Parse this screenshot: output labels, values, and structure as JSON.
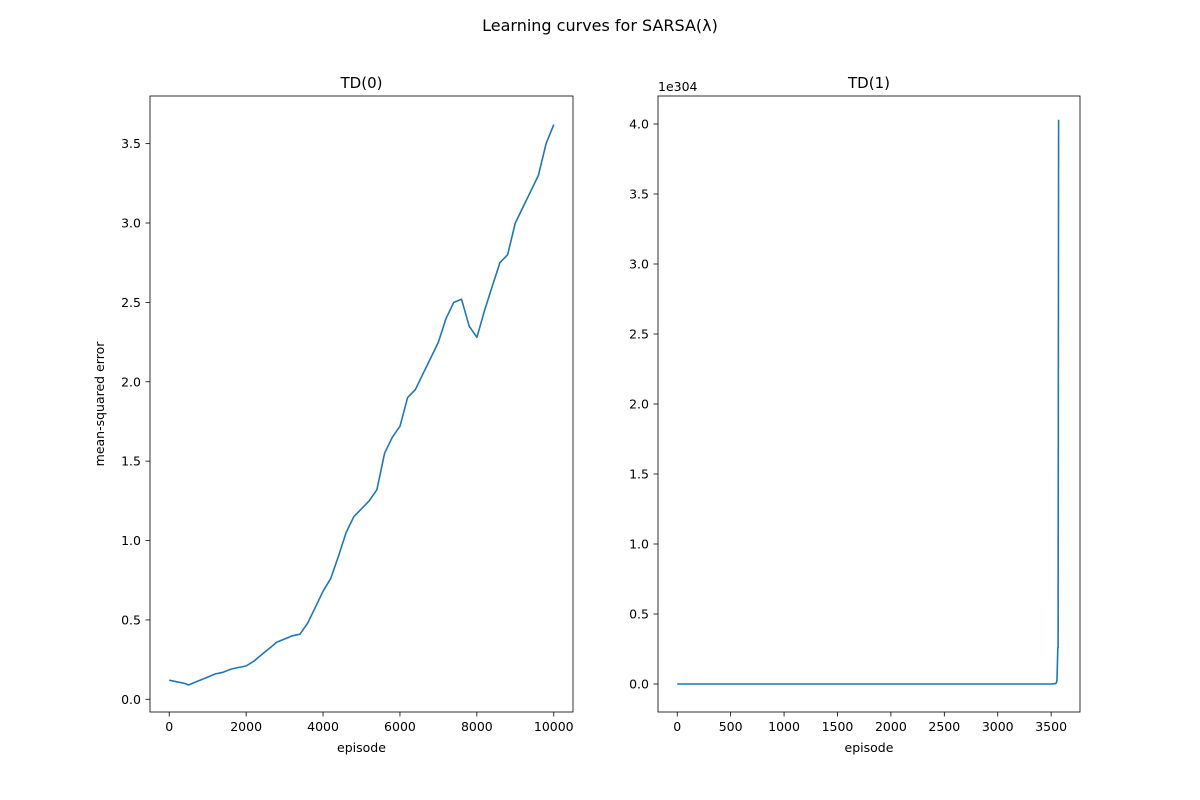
{
  "figure": {
    "suptitle": "Learning curves for SARSA(λ)"
  },
  "chart_data": [
    {
      "type": "line",
      "title": "TD(0)",
      "xlabel": "episode",
      "ylabel": "mean-squared error",
      "xlim": [
        -500,
        10500
      ],
      "ylim": [
        -0.08,
        3.8
      ],
      "xticks": [
        0,
        2000,
        4000,
        6000,
        8000,
        10000
      ],
      "xticklabels": [
        "0",
        "2000",
        "4000",
        "6000",
        "8000",
        "10000"
      ],
      "yticks": [
        0,
        0.5,
        1.0,
        1.5,
        2.0,
        2.5,
        3.0,
        3.5
      ],
      "yticklabels": [
        "0.0",
        "0.5",
        "1.0",
        "1.5",
        "2.0",
        "2.5",
        "3.0",
        "3.5"
      ],
      "offset_label": "",
      "color": "#1f77b4",
      "series": [
        {
          "name": "TD(0)",
          "x": [
            0,
            200,
            400,
            500,
            600,
            800,
            1000,
            1200,
            1400,
            1600,
            1800,
            2000,
            2200,
            2400,
            2600,
            2800,
            3000,
            3200,
            3400,
            3600,
            3800,
            4000,
            4200,
            4400,
            4600,
            4800,
            5000,
            5200,
            5400,
            5600,
            5800,
            6000,
            6200,
            6400,
            6600,
            6800,
            7000,
            7200,
            7400,
            7600,
            7800,
            8000,
            8200,
            8400,
            8600,
            8800,
            9000,
            9200,
            9400,
            9600,
            9800,
            10000
          ],
          "y": [
            0.12,
            0.11,
            0.1,
            0.09,
            0.1,
            0.12,
            0.14,
            0.16,
            0.17,
            0.19,
            0.2,
            0.21,
            0.24,
            0.28,
            0.32,
            0.36,
            0.38,
            0.4,
            0.41,
            0.48,
            0.58,
            0.68,
            0.76,
            0.9,
            1.05,
            1.15,
            1.2,
            1.25,
            1.32,
            1.55,
            1.65,
            1.72,
            1.9,
            1.95,
            2.05,
            2.15,
            2.25,
            2.4,
            2.5,
            2.52,
            2.35,
            2.28,
            2.45,
            2.6,
            2.75,
            2.8,
            3.0,
            3.1,
            3.2,
            3.3,
            3.5,
            3.62
          ]
        }
      ]
    },
    {
      "type": "line",
      "title": "TD(1)",
      "xlabel": "episode",
      "ylabel": "",
      "xlim": [
        -180,
        3770
      ],
      "ylim": [
        -0.2,
        4.2
      ],
      "xticks": [
        0,
        500,
        1000,
        1500,
        2000,
        2500,
        3000,
        3500
      ],
      "xticklabels": [
        "0",
        "500",
        "1000",
        "1500",
        "2000",
        "2500",
        "3000",
        "3500"
      ],
      "yticks": [
        0,
        0.5,
        1.0,
        1.5,
        2.0,
        2.5,
        3.0,
        3.5,
        4.0
      ],
      "yticklabels": [
        "0.0",
        "0.5",
        "1.0",
        "1.5",
        "2.0",
        "2.5",
        "3.0",
        "3.5",
        "4.0"
      ],
      "offset_label": "1e304",
      "color": "#1f77b4",
      "series": [
        {
          "name": "TD(1)",
          "x": [
            0,
            1000,
            2000,
            3000,
            3500,
            3540,
            3550,
            3555,
            3560,
            3562,
            3565,
            3570
          ],
          "y": [
            0,
            0,
            0,
            0,
            0,
            0.003,
            0.01,
            0.03,
            0.2,
            0.26,
            0.26,
            4.03
          ]
        }
      ]
    }
  ]
}
